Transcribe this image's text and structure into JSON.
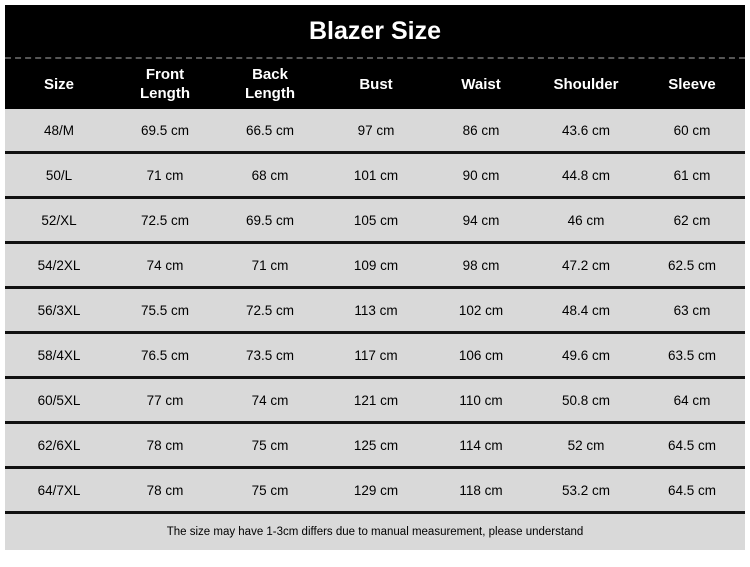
{
  "title": "Blazer Size",
  "headers": [
    "Size",
    "Front\nLength",
    "Back\nLength",
    "Bust",
    "Waist",
    "Shoulder",
    "Sleeve"
  ],
  "rows": [
    [
      "48/M",
      "69.5 cm",
      "66.5 cm",
      "97 cm",
      "86 cm",
      "43.6 cm",
      "60 cm"
    ],
    [
      "50/L",
      "71 cm",
      "68 cm",
      "101 cm",
      "90 cm",
      "44.8 cm",
      "61 cm"
    ],
    [
      "52/XL",
      "72.5 cm",
      "69.5 cm",
      "105 cm",
      "94 cm",
      "46 cm",
      "62 cm"
    ],
    [
      "54/2XL",
      "74 cm",
      "71 cm",
      "109 cm",
      "98 cm",
      "47.2 cm",
      "62.5 cm"
    ],
    [
      "56/3XL",
      "75.5 cm",
      "72.5 cm",
      "113 cm",
      "102 cm",
      "48.4 cm",
      "63 cm"
    ],
    [
      "58/4XL",
      "76.5 cm",
      "73.5 cm",
      "117 cm",
      "106 cm",
      "49.6 cm",
      "63.5 cm"
    ],
    [
      "60/5XL",
      "77 cm",
      "74 cm",
      "121 cm",
      "110 cm",
      "50.8 cm",
      "64 cm"
    ],
    [
      "62/6XL",
      "78 cm",
      "75 cm",
      "125 cm",
      "114 cm",
      "52 cm",
      "64.5 cm"
    ],
    [
      "64/7XL",
      "78 cm",
      "75 cm",
      "129 cm",
      "118 cm",
      "53.2 cm",
      "64.5 cm"
    ]
  ],
  "footer": "The size may have 1-3cm differs due to manual measurement, please understand"
}
